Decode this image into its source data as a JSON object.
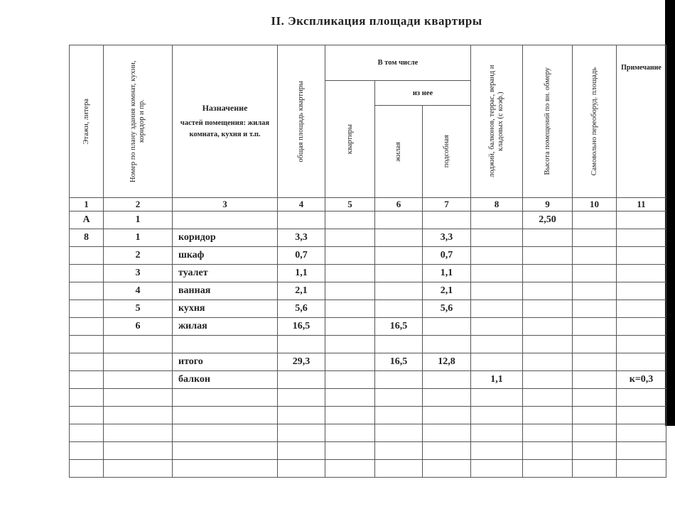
{
  "title": "II. Экспликация площади квартиры",
  "headers": {
    "c1": "Этажи, литера",
    "c2": "Номер по плану здания комнат, кухни, коридор и пр.",
    "c3_title": "Назначение",
    "c3_sub": "частей помещения: жилая комната, кухня и т.п.",
    "c4": "общая площадь квартиры",
    "group": "В том числе",
    "c5": "квартиры",
    "subgroup": "из нее",
    "c6": "жилая",
    "c7": "подсобная",
    "c8": "лоджий, балконов, террас, веранд и кладовых (с коэф.)",
    "c9": "Высота помещений по вн. обмеру",
    "c10": "Самовольно переоборуд. площадь",
    "c11": "Примечание"
  },
  "column_numbers": [
    "1",
    "2",
    "3",
    "4",
    "5",
    "6",
    "7",
    "8",
    "9",
    "10",
    "11"
  ],
  "rows": [
    [
      "А",
      "1",
      "",
      "",
      "",
      "",
      "",
      "",
      "2,50",
      "",
      ""
    ],
    [
      "8",
      "1",
      "коридор",
      "3,3",
      "",
      "",
      "3,3",
      "",
      "",
      "",
      ""
    ],
    [
      "",
      "2",
      "шкаф",
      "0,7",
      "",
      "",
      "0,7",
      "",
      "",
      "",
      ""
    ],
    [
      "",
      "3",
      "туалет",
      "1,1",
      "",
      "",
      "1,1",
      "",
      "",
      "",
      ""
    ],
    [
      "",
      "4",
      "ванная",
      "2,1",
      "",
      "",
      "2,1",
      "",
      "",
      "",
      ""
    ],
    [
      "",
      "5",
      "кухня",
      "5,6",
      "",
      "",
      "5,6",
      "",
      "",
      "",
      ""
    ],
    [
      "",
      "6",
      "жилая",
      "16,5",
      "",
      "16,5",
      "",
      "",
      "",
      "",
      ""
    ],
    [
      "",
      "",
      "",
      "",
      "",
      "",
      "",
      "",
      "",
      "",
      ""
    ],
    [
      "",
      "",
      "итого",
      "29,3",
      "",
      "16,5",
      "12,8",
      "",
      "",
      "",
      ""
    ],
    [
      "",
      "",
      "балкон",
      "",
      "",
      "",
      "",
      "1,1",
      "",
      "",
      "к=0,3"
    ],
    [
      "",
      "",
      "",
      "",
      "",
      "",
      "",
      "",
      "",
      "",
      ""
    ],
    [
      "",
      "",
      "",
      "",
      "",
      "",
      "",
      "",
      "",
      "",
      ""
    ],
    [
      "",
      "",
      "",
      "",
      "",
      "",
      "",
      "",
      "",
      "",
      ""
    ],
    [
      "",
      "",
      "",
      "",
      "",
      "",
      "",
      "",
      "",
      "",
      ""
    ],
    [
      "",
      "",
      "",
      "",
      "",
      "",
      "",
      "",
      "",
      "",
      ""
    ]
  ]
}
